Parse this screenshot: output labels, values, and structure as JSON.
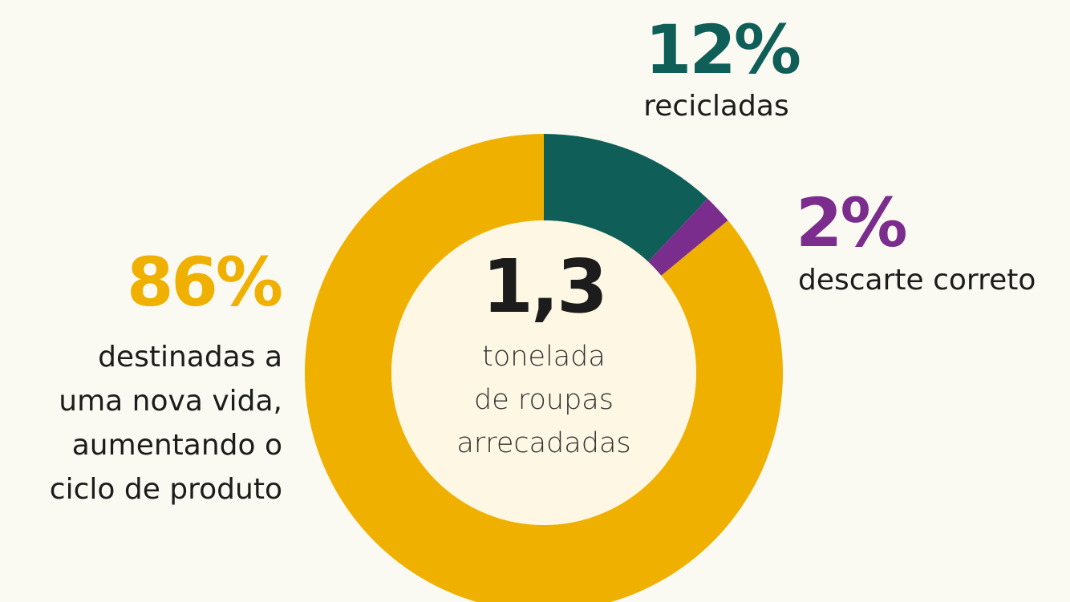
{
  "chart_data": {
    "type": "pie",
    "categories": [
      "recicladas",
      "descarte correto",
      "destinadas a\numa nova vida,\naumentando o\nciclo de produto"
    ],
    "values": [
      12,
      2,
      86
    ],
    "value_labels": [
      "12%",
      "2%",
      "86%"
    ],
    "colors": [
      "#0f5f58",
      "#7b2d8e",
      "#f0b000"
    ],
    "center_title": "1,3",
    "center_subtitle": "tonelada\nde roupas\narrecadadas"
  }
}
